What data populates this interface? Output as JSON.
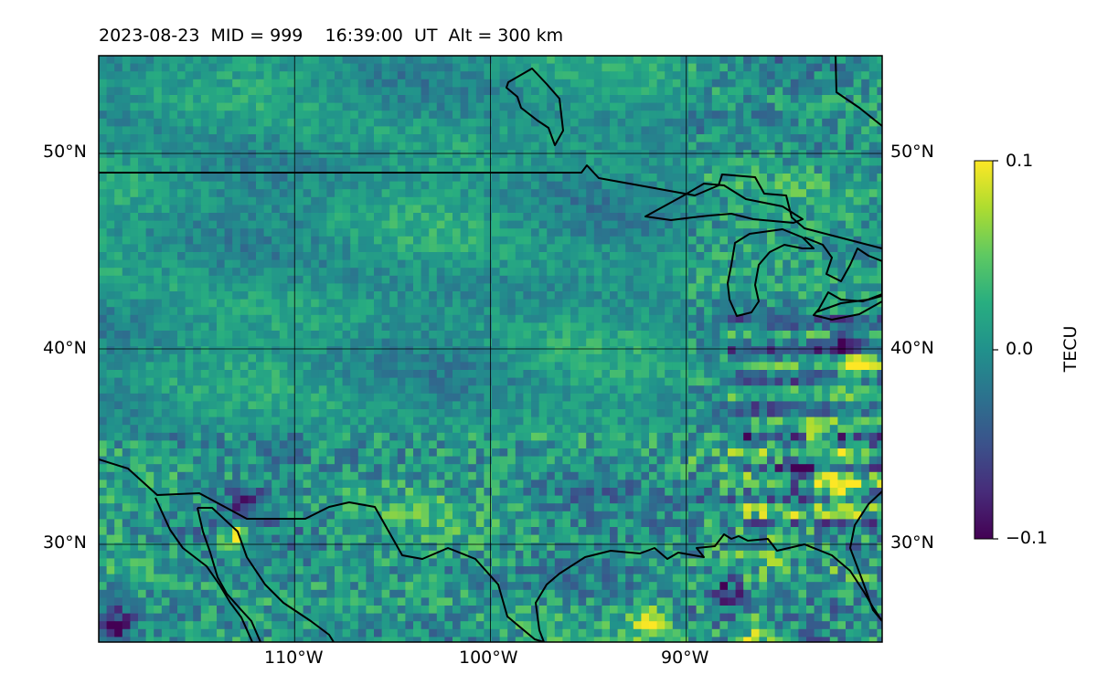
{
  "title": "2023-08-23  MID = 999    16:39:00  UT  Alt = 300 km",
  "map": {
    "projection": "lat-lon",
    "lon_range": [
      -120,
      -80
    ],
    "lat_range": [
      25,
      55
    ],
    "gridlines": true,
    "lon_ticks": [
      {
        "value": -110,
        "label": "110°W"
      },
      {
        "value": -100,
        "label": "100°W"
      },
      {
        "value": -90,
        "label": "90°W"
      }
    ],
    "lat_ticks": [
      {
        "value": 50,
        "label": "50°N"
      },
      {
        "value": 40,
        "label": "40°N"
      },
      {
        "value": 30,
        "label": "30°N"
      }
    ],
    "field": "TEC anomaly (pixelated heat map)",
    "colormap": "viridis",
    "hotspots_high": [
      {
        "lon": -92,
        "lat": 26.2
      },
      {
        "lon": -83.5,
        "lat": 35.7
      },
      {
        "lon": -82,
        "lat": 33.2
      },
      {
        "lon": -86.5,
        "lat": 25.5
      },
      {
        "lon": -113,
        "lat": 30.5
      },
      {
        "lon": -81.5,
        "lat": 39.2
      }
    ],
    "hotspots_low": [
      {
        "lon": -112.5,
        "lat": 32.3
      },
      {
        "lon": -84.5,
        "lat": 33.5
      },
      {
        "lon": -119,
        "lat": 26
      },
      {
        "lon": -82,
        "lat": 40.5
      },
      {
        "lon": -88,
        "lat": 27.5
      }
    ]
  },
  "colorbar": {
    "label": "TECU",
    "min": -0.1,
    "max": 0.1,
    "ticks": [
      {
        "value": 0.1,
        "label": "0.1"
      },
      {
        "value": 0.0,
        "label": "0.0"
      },
      {
        "value": -0.1,
        "label": "−0.1"
      }
    ]
  },
  "colors": {
    "viridis_low": "#440154",
    "viridis_mid": "#21918c",
    "viridis_high": "#fde725",
    "coastline": "#000000",
    "grid": "#000000"
  }
}
